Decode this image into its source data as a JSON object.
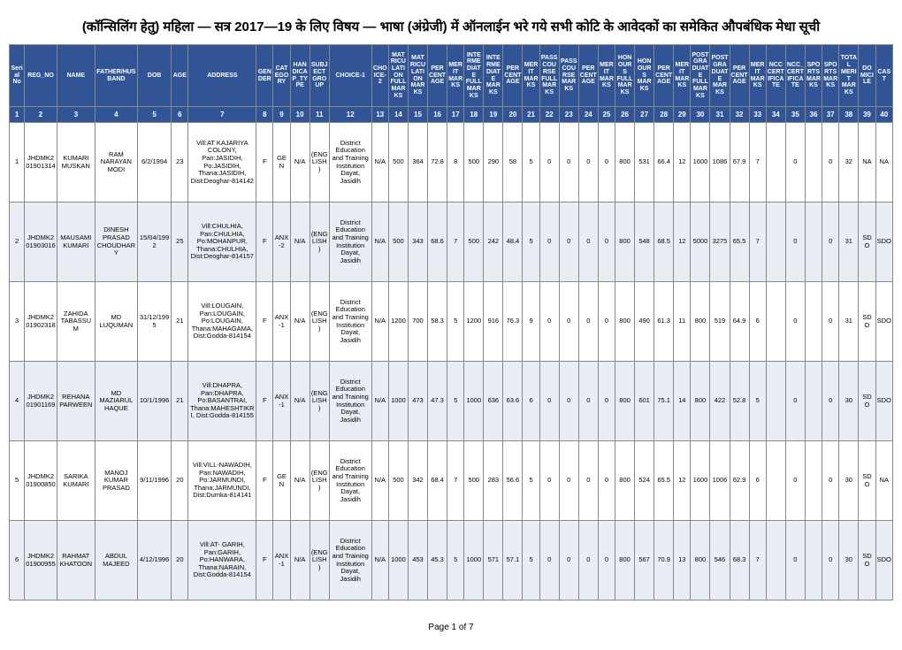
{
  "title": "(कॉन्सिलिंग हेतु) महिला — सत्र 2017—19 के लिए विषय — भाषा (अंग्रेजी) में ऑनलाईन भरे गये सभी कोटि के आवेदकों का समेकित औपबंधिक मेधा सूची",
  "footer": "Page 1 of 7",
  "headers": [
    "Serial No",
    "REG_NO",
    "NAME",
    "FATHER/HUSBAND",
    "DOB",
    "AGE",
    "ADDRESS",
    "GENDER",
    "CATEGORY",
    "HANDICAP_TYPE",
    "SUBJECT GROUP",
    "CHOICE-1",
    "CHOICE-2",
    "MATRICULATION FULL MARKS",
    "MATRICULATION MARKS",
    "PERCENTAGE",
    "MERIT MARKS",
    "INTERMEDIATE FULL MARKS",
    "INTERMEDIATE MARKS",
    "PERCENTAGE",
    "MERIT MARKS",
    "PASS COURSE FULL MARKS",
    "PASS COURSE MARKS",
    "PERCENTAGE",
    "MERIT MARKS",
    "HONOURS FULL MARKS",
    "HONOURS MARKS",
    "PERCENTAGE",
    "MERIT MARKS",
    "POST GRADUATE FULL MARKS",
    "POST GRADUATE MARKS",
    "PERCENTAGE",
    "MERIT MARKS",
    "NCC CERTIFICATE",
    "NCC_CERTIFICATE",
    "SPORTS MARKS",
    "SPORTS MARKS",
    "TOTAL MERIT MARKS",
    "DOMICILE",
    "CAST"
  ],
  "numrow": [
    "1",
    "2",
    "3",
    "4",
    "5",
    "6",
    "7",
    "8",
    "9",
    "10",
    "11",
    "12",
    "13",
    "14",
    "15",
    "16",
    "17",
    "18",
    "19",
    "20",
    "21",
    "22",
    "23",
    "24",
    "25",
    "26",
    "27",
    "28",
    "29",
    "30",
    "31",
    "32",
    "33",
    "34",
    "35",
    "36",
    "37",
    "38",
    "39",
    "40"
  ],
  "rows": [
    {
      "serial": "1",
      "reg": "JHDMK201901314",
      "name": "KUMARI MUSKAN",
      "father": "RAM NARAYAN MODI",
      "dob": "6/2/1994",
      "age": "23",
      "addr": "Vill:AT KAJARIYA COLONY, Pan:JASIDIH, Po:JASIDIH, Thana:JASIDIH, Dist:Deoghar-814142",
      "gen": "F",
      "cat": "GEN",
      "hcap": "N/A",
      "subj": "(ENGLISH)",
      "ch1": "District Education and Training Institution Dayat, Jasidih",
      "ch2": "N/A",
      "m_full": "500",
      "m_mark": "364",
      "m_pct": "72.8",
      "m_merit": "8",
      "i_full": "500",
      "i_mark": "290",
      "i_pct": "58",
      "i_merit": "5",
      "p_full": "0",
      "p_mark": "0",
      "p_pct": "0",
      "p_merit": "0",
      "h_full": "800",
      "h_mark": "531",
      "h_pct": "66.4",
      "h_merit": "12",
      "pg_full": "1600",
      "pg_mark": "1086",
      "pg_pct": "67.9",
      "pg_merit": "7",
      "ncc": "",
      "ncc2": "0",
      "sp": "",
      "sp2": "0",
      "total": "32",
      "dom": "NA",
      "cast": "NA"
    },
    {
      "serial": "2",
      "reg": "JHDMK201903016",
      "name": "MAUSAMI KUMARI",
      "father": "DINESH PRASAD CHOUDHARY",
      "dob": "15/04/1992",
      "age": "25",
      "addr": "Vill:CHULHIA, Pan:CHULHIA, Po:MOHANPUR, Thana:CHULHIA, Dist:Deoghar-814157",
      "gen": "F",
      "cat": "ANX-2",
      "hcap": "N/A",
      "subj": "(ENGLISH)",
      "ch1": "District Education and Training Institution Dayat, Jasidih",
      "ch2": "N/A",
      "m_full": "500",
      "m_mark": "343",
      "m_pct": "68.6",
      "m_merit": "7",
      "i_full": "500",
      "i_mark": "242",
      "i_pct": "48.4",
      "i_merit": "5",
      "p_full": "0",
      "p_mark": "0",
      "p_pct": "0",
      "p_merit": "0",
      "h_full": "800",
      "h_mark": "548",
      "h_pct": "68.5",
      "h_merit": "12",
      "pg_full": "5000",
      "pg_mark": "3275",
      "pg_pct": "65.5",
      "pg_merit": "7",
      "ncc": "",
      "ncc2": "0",
      "sp": "",
      "sp2": "0",
      "total": "31",
      "dom": "SDO",
      "cast": "SDO"
    },
    {
      "serial": "3",
      "reg": "JHDMK201902318",
      "name": "ZAHIDA TABASSUM",
      "father": "MD LUQUMAN",
      "dob": "31/12/1995",
      "age": "21",
      "addr": "Vill:LOUGAIN, Pan:LOUGAIN, Po:LOUGAIN, Thana:MAHAGAMA, Dist:Godda-814154",
      "gen": "F",
      "cat": "ANX-1",
      "hcap": "N/A",
      "subj": "(ENGLISH)",
      "ch1": "District Education and Training Institution Dayat, Jasidih",
      "ch2": "N/A",
      "m_full": "1200",
      "m_mark": "700",
      "m_pct": "58.3",
      "m_merit": "5",
      "i_full": "1200",
      "i_mark": "916",
      "i_pct": "76.3",
      "i_merit": "9",
      "p_full": "0",
      "p_mark": "0",
      "p_pct": "0",
      "p_merit": "0",
      "h_full": "800",
      "h_mark": "490",
      "h_pct": "61.3",
      "h_merit": "11",
      "pg_full": "800",
      "pg_mark": "519",
      "pg_pct": "64.9",
      "pg_merit": "6",
      "ncc": "",
      "ncc2": "0",
      "sp": "",
      "sp2": "0",
      "total": "31",
      "dom": "SDO",
      "cast": "SDO"
    },
    {
      "serial": "4",
      "reg": "JHDMK201901169",
      "name": "REHANA PARWEEN",
      "father": "MD MAZIARUL HAQUE",
      "dob": "10/1/1996",
      "age": "21",
      "addr": "Vill:DHAPRA, Pan:DHAPRA, Po:BASANTRAI, Thana:MAHESHTIKRI, Dist:Godda-814155",
      "gen": "F",
      "cat": "ANX-1",
      "hcap": "N/A",
      "subj": "(ENGLISH)",
      "ch1": "District Education and Training Institution Dayat, Jasidih",
      "ch2": "N/A",
      "m_full": "1000",
      "m_mark": "473",
      "m_pct": "47.3",
      "m_merit": "5",
      "i_full": "1000",
      "i_mark": "636",
      "i_pct": "63.6",
      "i_merit": "6",
      "p_full": "0",
      "p_mark": "0",
      "p_pct": "0",
      "p_merit": "0",
      "h_full": "800",
      "h_mark": "601",
      "h_pct": "75.1",
      "h_merit": "14",
      "pg_full": "800",
      "pg_mark": "422",
      "pg_pct": "52.8",
      "pg_merit": "5",
      "ncc": "",
      "ncc2": "0",
      "sp": "",
      "sp2": "0",
      "total": "30",
      "dom": "SDO",
      "cast": "SDO"
    },
    {
      "serial": "5",
      "reg": "JHDMK201900850",
      "name": "SARIKA KUMARI",
      "father": "MANOJ KUMAR PRASAD",
      "dob": "9/11/1996",
      "age": "20",
      "addr": "Vill:VILL-NAWADIH, Pan:NAWADIH, Po:JARMUNDI, Thana:JARMUNDI, Dist:Dumka-814141",
      "gen": "F",
      "cat": "GEN",
      "hcap": "N/A",
      "subj": "(ENGLISH)",
      "ch1": "District Education and Training Institution Dayat, Jasidih",
      "ch2": "N/A",
      "m_full": "500",
      "m_mark": "342",
      "m_pct": "68.4",
      "m_merit": "7",
      "i_full": "500",
      "i_mark": "283",
      "i_pct": "56.6",
      "i_merit": "5",
      "p_full": "0",
      "p_mark": "0",
      "p_pct": "0",
      "p_merit": "0",
      "h_full": "800",
      "h_mark": "524",
      "h_pct": "65.5",
      "h_merit": "12",
      "pg_full": "1600",
      "pg_mark": "1006",
      "pg_pct": "62.9",
      "pg_merit": "6",
      "ncc": "",
      "ncc2": "0",
      "sp": "",
      "sp2": "0",
      "total": "30",
      "dom": "SDO",
      "cast": "NA"
    },
    {
      "serial": "6",
      "reg": "JHDMK201900955",
      "name": "RAHMAT KHATOON",
      "father": "ABDUL MAJEED",
      "dob": "4/12/1996",
      "age": "20",
      "addr": "Vill:AT- GARIH, Pan:GARIH, Po:HANWARA, Thana:NARAIN, Dist:Godda-814154",
      "gen": "F",
      "cat": "ANX-1",
      "hcap": "N/A",
      "subj": "(ENGLISH)",
      "ch1": "District Education and Training Institution Dayat, Jasidih",
      "ch2": "N/A",
      "m_full": "1000",
      "m_mark": "453",
      "m_pct": "45.3",
      "m_merit": "5",
      "i_full": "1000",
      "i_mark": "571",
      "i_pct": "57.1",
      "i_merit": "5",
      "p_full": "0",
      "p_mark": "0",
      "p_pct": "0",
      "p_merit": "0",
      "h_full": "800",
      "h_mark": "567",
      "h_pct": "70.9",
      "h_merit": "13",
      "pg_full": "800",
      "pg_mark": "546",
      "pg_pct": "68.3",
      "pg_merit": "7",
      "ncc": "",
      "ncc2": "0",
      "sp": "",
      "sp2": "0",
      "total": "30",
      "dom": "SDO",
      "cast": "SDO"
    }
  ]
}
